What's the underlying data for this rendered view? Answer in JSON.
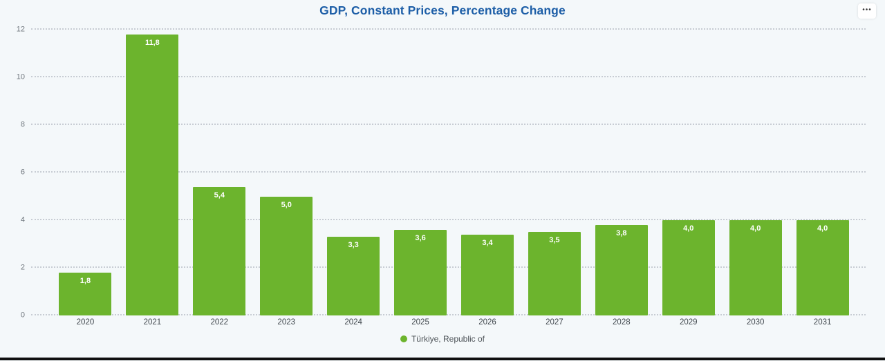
{
  "header": {
    "title": "GDP, Constant Prices, Percentage Change",
    "menu_icon": "•••"
  },
  "colors": {
    "background": "#f4f8fa",
    "bar": "#6cb42d",
    "title": "#1d5ea7",
    "grid": "#c7ccd3",
    "value_label": "#ffffff",
    "footer_bar": "#101010"
  },
  "chart_data": {
    "type": "bar",
    "title": "GDP, Constant Prices, Percentage Change",
    "categories": [
      "2020",
      "2021",
      "2022",
      "2023",
      "2024",
      "2025",
      "2026",
      "2027",
      "2028",
      "2029",
      "2030",
      "2031"
    ],
    "values": [
      1.8,
      11.8,
      5.4,
      5.0,
      3.3,
      3.6,
      3.4,
      3.5,
      3.8,
      4.0,
      4.0,
      4.0
    ],
    "value_labels": [
      "1,8",
      "11,8",
      "5,4",
      "5,0",
      "3,3",
      "3,6",
      "3,4",
      "3,5",
      "3,8",
      "4,0",
      "4,0",
      "4,0"
    ],
    "xlabel": "",
    "ylabel": "",
    "ylim": [
      0,
      12
    ],
    "yticks": [
      0,
      2,
      4,
      6,
      8,
      10,
      12
    ],
    "grid": true,
    "grid_style": "dotted",
    "legend": [
      {
        "label": "Türkiye, Republic of",
        "color": "#6cb42d"
      }
    ],
    "legend_position": "bottom"
  }
}
